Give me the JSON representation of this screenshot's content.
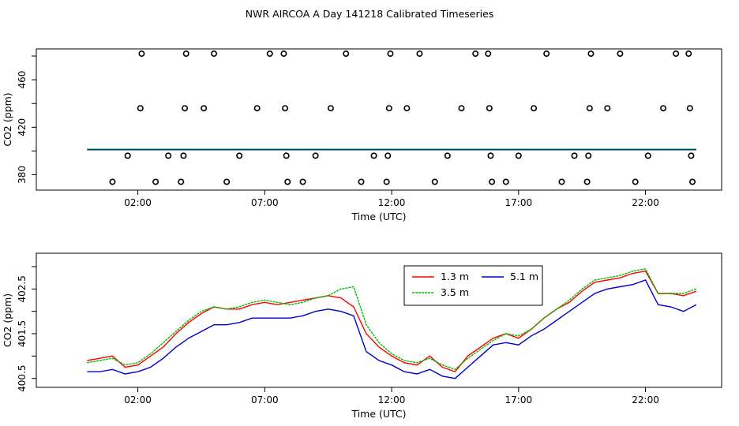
{
  "title": "NWR AIRCOA A  Day 141218  Calibrated Timeseries",
  "chart_data": [
    {
      "type": "scatter",
      "panel": "top",
      "xlabel": "Time (UTC)",
      "ylabel": "CO2 (ppm)",
      "x_ticks": [
        "02:00",
        "07:00",
        "12:00",
        "17:00",
        "22:00"
      ],
      "x_tick_values": [
        2,
        7,
        12,
        17,
        22
      ],
      "y_ticks": [
        "380",
        "420",
        "460"
      ],
      "y_tick_values": [
        380,
        420,
        460
      ],
      "xlim": [
        -2.0,
        25.0
      ],
      "ylim": [
        367,
        486
      ],
      "series": [
        {
          "color": "#ff0000",
          "values_constant": 401.5
        },
        {
          "color": "#00cc00",
          "values_constant": 401.6
        },
        {
          "color": "#0000cc",
          "values_constant": 401.0
        }
      ],
      "cal_points": [
        [
          1.0,
          374
        ],
        [
          1.6,
          396
        ],
        [
          2.1,
          436
        ],
        [
          2.15,
          482
        ],
        [
          2.7,
          374
        ],
        [
          3.2,
          396
        ],
        [
          3.7,
          374
        ],
        [
          3.8,
          396
        ],
        [
          3.85,
          436
        ],
        [
          3.9,
          482
        ],
        [
          4.6,
          436
        ],
        [
          5.0,
          482
        ],
        [
          5.5,
          374
        ],
        [
          6.0,
          396
        ],
        [
          6.7,
          436
        ],
        [
          7.2,
          482
        ],
        [
          7.75,
          482
        ],
        [
          7.8,
          436
        ],
        [
          7.85,
          396
        ],
        [
          7.9,
          374
        ],
        [
          8.5,
          374
        ],
        [
          9.0,
          396
        ],
        [
          9.6,
          436
        ],
        [
          10.2,
          482
        ],
        [
          10.8,
          374
        ],
        [
          11.3,
          396
        ],
        [
          11.8,
          374
        ],
        [
          11.85,
          396
        ],
        [
          11.9,
          436
        ],
        [
          11.95,
          482
        ],
        [
          12.6,
          436
        ],
        [
          13.1,
          482
        ],
        [
          13.7,
          374
        ],
        [
          14.2,
          396
        ],
        [
          14.75,
          436
        ],
        [
          15.3,
          482
        ],
        [
          15.8,
          482
        ],
        [
          15.85,
          436
        ],
        [
          15.9,
          396
        ],
        [
          15.95,
          374
        ],
        [
          16.5,
          374
        ],
        [
          17.0,
          396
        ],
        [
          17.6,
          436
        ],
        [
          18.1,
          482
        ],
        [
          18.7,
          374
        ],
        [
          19.2,
          396
        ],
        [
          19.7,
          374
        ],
        [
          19.75,
          396
        ],
        [
          19.8,
          436
        ],
        [
          19.85,
          482
        ],
        [
          20.5,
          436
        ],
        [
          21.0,
          482
        ],
        [
          21.6,
          374
        ],
        [
          22.1,
          396
        ],
        [
          22.7,
          436
        ],
        [
          23.2,
          482
        ],
        [
          23.7,
          482
        ],
        [
          23.75,
          436
        ],
        [
          23.8,
          396
        ],
        [
          23.85,
          374
        ]
      ]
    },
    {
      "type": "line",
      "panel": "bottom",
      "xlabel": "Time (UTC)",
      "ylabel": "CO2 (ppm)",
      "x_ticks": [
        "02:00",
        "07:00",
        "12:00",
        "17:00",
        "22:00"
      ],
      "x_tick_values": [
        2,
        7,
        12,
        17,
        22
      ],
      "y_ticks": [
        "400.5",
        "401.5",
        "402.5"
      ],
      "y_tick_values": [
        400.5,
        401.5,
        402.5
      ],
      "xlim": [
        -2.0,
        25.0
      ],
      "ylim": [
        400.3,
        403.3
      ],
      "x": [
        0.0,
        0.5,
        1.0,
        1.5,
        2.0,
        2.5,
        3.0,
        3.5,
        4.0,
        4.5,
        5.0,
        5.5,
        6.0,
        6.5,
        7.0,
        7.5,
        8.0,
        8.5,
        9.0,
        9.5,
        10.0,
        10.5,
        11.0,
        11.5,
        12.0,
        12.5,
        13.0,
        13.5,
        14.0,
        14.5,
        15.0,
        15.5,
        16.0,
        16.5,
        17.0,
        17.5,
        18.0,
        18.5,
        19.0,
        19.5,
        20.0,
        20.5,
        21.0,
        21.5,
        22.0,
        22.5,
        23.0,
        23.5,
        24.0
      ],
      "legend": {
        "position": "top-center-right"
      },
      "series": [
        {
          "name": "1.3 m",
          "color": "#ff0000",
          "values": [
            400.9,
            400.95,
            401.0,
            400.75,
            400.8,
            401.0,
            401.2,
            401.5,
            401.75,
            401.95,
            402.1,
            402.05,
            402.05,
            402.15,
            402.2,
            402.15,
            402.2,
            402.25,
            402.3,
            402.35,
            402.3,
            402.1,
            401.5,
            401.2,
            401.0,
            400.85,
            400.8,
            401.0,
            400.75,
            400.65,
            401.0,
            401.2,
            401.4,
            401.5,
            401.4,
            401.6,
            401.85,
            402.05,
            402.2,
            402.45,
            402.65,
            402.7,
            402.75,
            402.85,
            402.9,
            402.4,
            402.4,
            402.35,
            402.45
          ]
        },
        {
          "name": "3.5 m",
          "color": "#00bb00",
          "values": [
            400.85,
            400.9,
            400.95,
            400.8,
            400.85,
            401.05,
            401.3,
            401.55,
            401.8,
            402.0,
            402.1,
            402.05,
            402.1,
            402.2,
            402.25,
            402.2,
            402.15,
            402.2,
            402.3,
            402.35,
            402.5,
            402.55,
            401.7,
            401.3,
            401.05,
            400.9,
            400.85,
            400.95,
            400.8,
            400.7,
            400.95,
            401.15,
            401.35,
            401.5,
            401.45,
            401.6,
            401.85,
            402.05,
            402.25,
            402.5,
            402.7,
            402.75,
            402.8,
            402.9,
            402.95,
            402.4,
            402.4,
            402.4,
            402.5
          ]
        },
        {
          "name": "5.1 m",
          "color": "#0000cc",
          "values": [
            400.65,
            400.65,
            400.7,
            400.6,
            400.65,
            400.75,
            400.95,
            401.2,
            401.4,
            401.55,
            401.7,
            401.7,
            401.75,
            401.85,
            401.85,
            401.85,
            401.85,
            401.9,
            402.0,
            402.05,
            402.0,
            401.9,
            401.1,
            400.9,
            400.8,
            400.65,
            400.6,
            400.7,
            400.55,
            400.5,
            400.75,
            401.0,
            401.25,
            401.3,
            401.25,
            401.45,
            401.6,
            401.8,
            402.0,
            402.2,
            402.4,
            402.5,
            402.55,
            402.6,
            402.7,
            402.15,
            402.1,
            402.0,
            402.15
          ]
        }
      ]
    }
  ]
}
